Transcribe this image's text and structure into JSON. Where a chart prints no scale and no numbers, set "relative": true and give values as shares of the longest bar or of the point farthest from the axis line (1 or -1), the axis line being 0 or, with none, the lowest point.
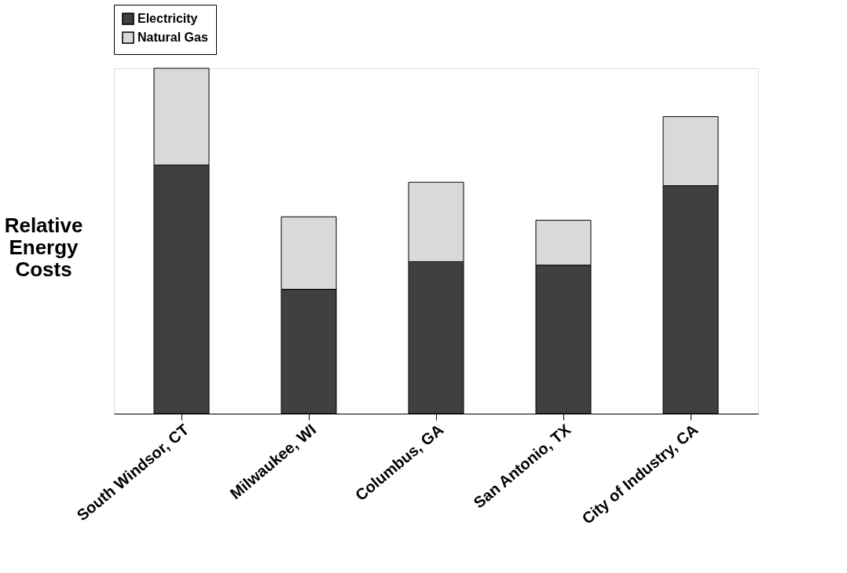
{
  "chart_data": {
    "type": "bar",
    "ylabel": "Relative Energy Costs",
    "relative": true,
    "stacked": true,
    "legend": "top",
    "categories": [
      "South Windsor, CT",
      "Milwaukee, WI",
      "Columbus, GA",
      "San Antonio, TX",
      "City of Industry, CA"
    ],
    "series": [
      {
        "name": "Electricity",
        "color": "#404040",
        "values": [
          0.72,
          0.36,
          0.44,
          0.43,
          0.66
        ]
      },
      {
        "name": "Natural Gas",
        "color": "#d9d9d9",
        "values": [
          0.28,
          0.21,
          0.23,
          0.13,
          0.2
        ]
      }
    ]
  }
}
